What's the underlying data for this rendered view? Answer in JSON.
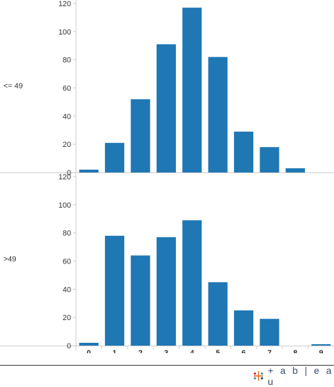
{
  "chart_data": [
    {
      "type": "bar",
      "panel": "<= 49",
      "categories": [
        "0",
        "1",
        "2",
        "3",
        "4",
        "5",
        "6",
        "7",
        "8",
        "9"
      ],
      "values": [
        2,
        21,
        52,
        91,
        117,
        82,
        29,
        18,
        3,
        0
      ],
      "ylim": [
        0,
        120
      ],
      "yticks": [
        0,
        20,
        40,
        60,
        80,
        100,
        120
      ],
      "grid": false
    },
    {
      "type": "bar",
      "panel": ">49",
      "categories": [
        "0",
        "1",
        "2",
        "3",
        "4",
        "5",
        "6",
        "7",
        "8",
        "9"
      ],
      "values": [
        2,
        78,
        64,
        77,
        89,
        45,
        25,
        19,
        0,
        1
      ],
      "ylim": [
        0,
        120
      ],
      "yticks": [
        0,
        20,
        40,
        60,
        80,
        100,
        120
      ],
      "grid": false
    }
  ],
  "colors": {
    "bar": "#1f77b4",
    "axis": "#cccccc",
    "text": "#333333"
  },
  "logo": {
    "text": "+ a b | e a u"
  }
}
